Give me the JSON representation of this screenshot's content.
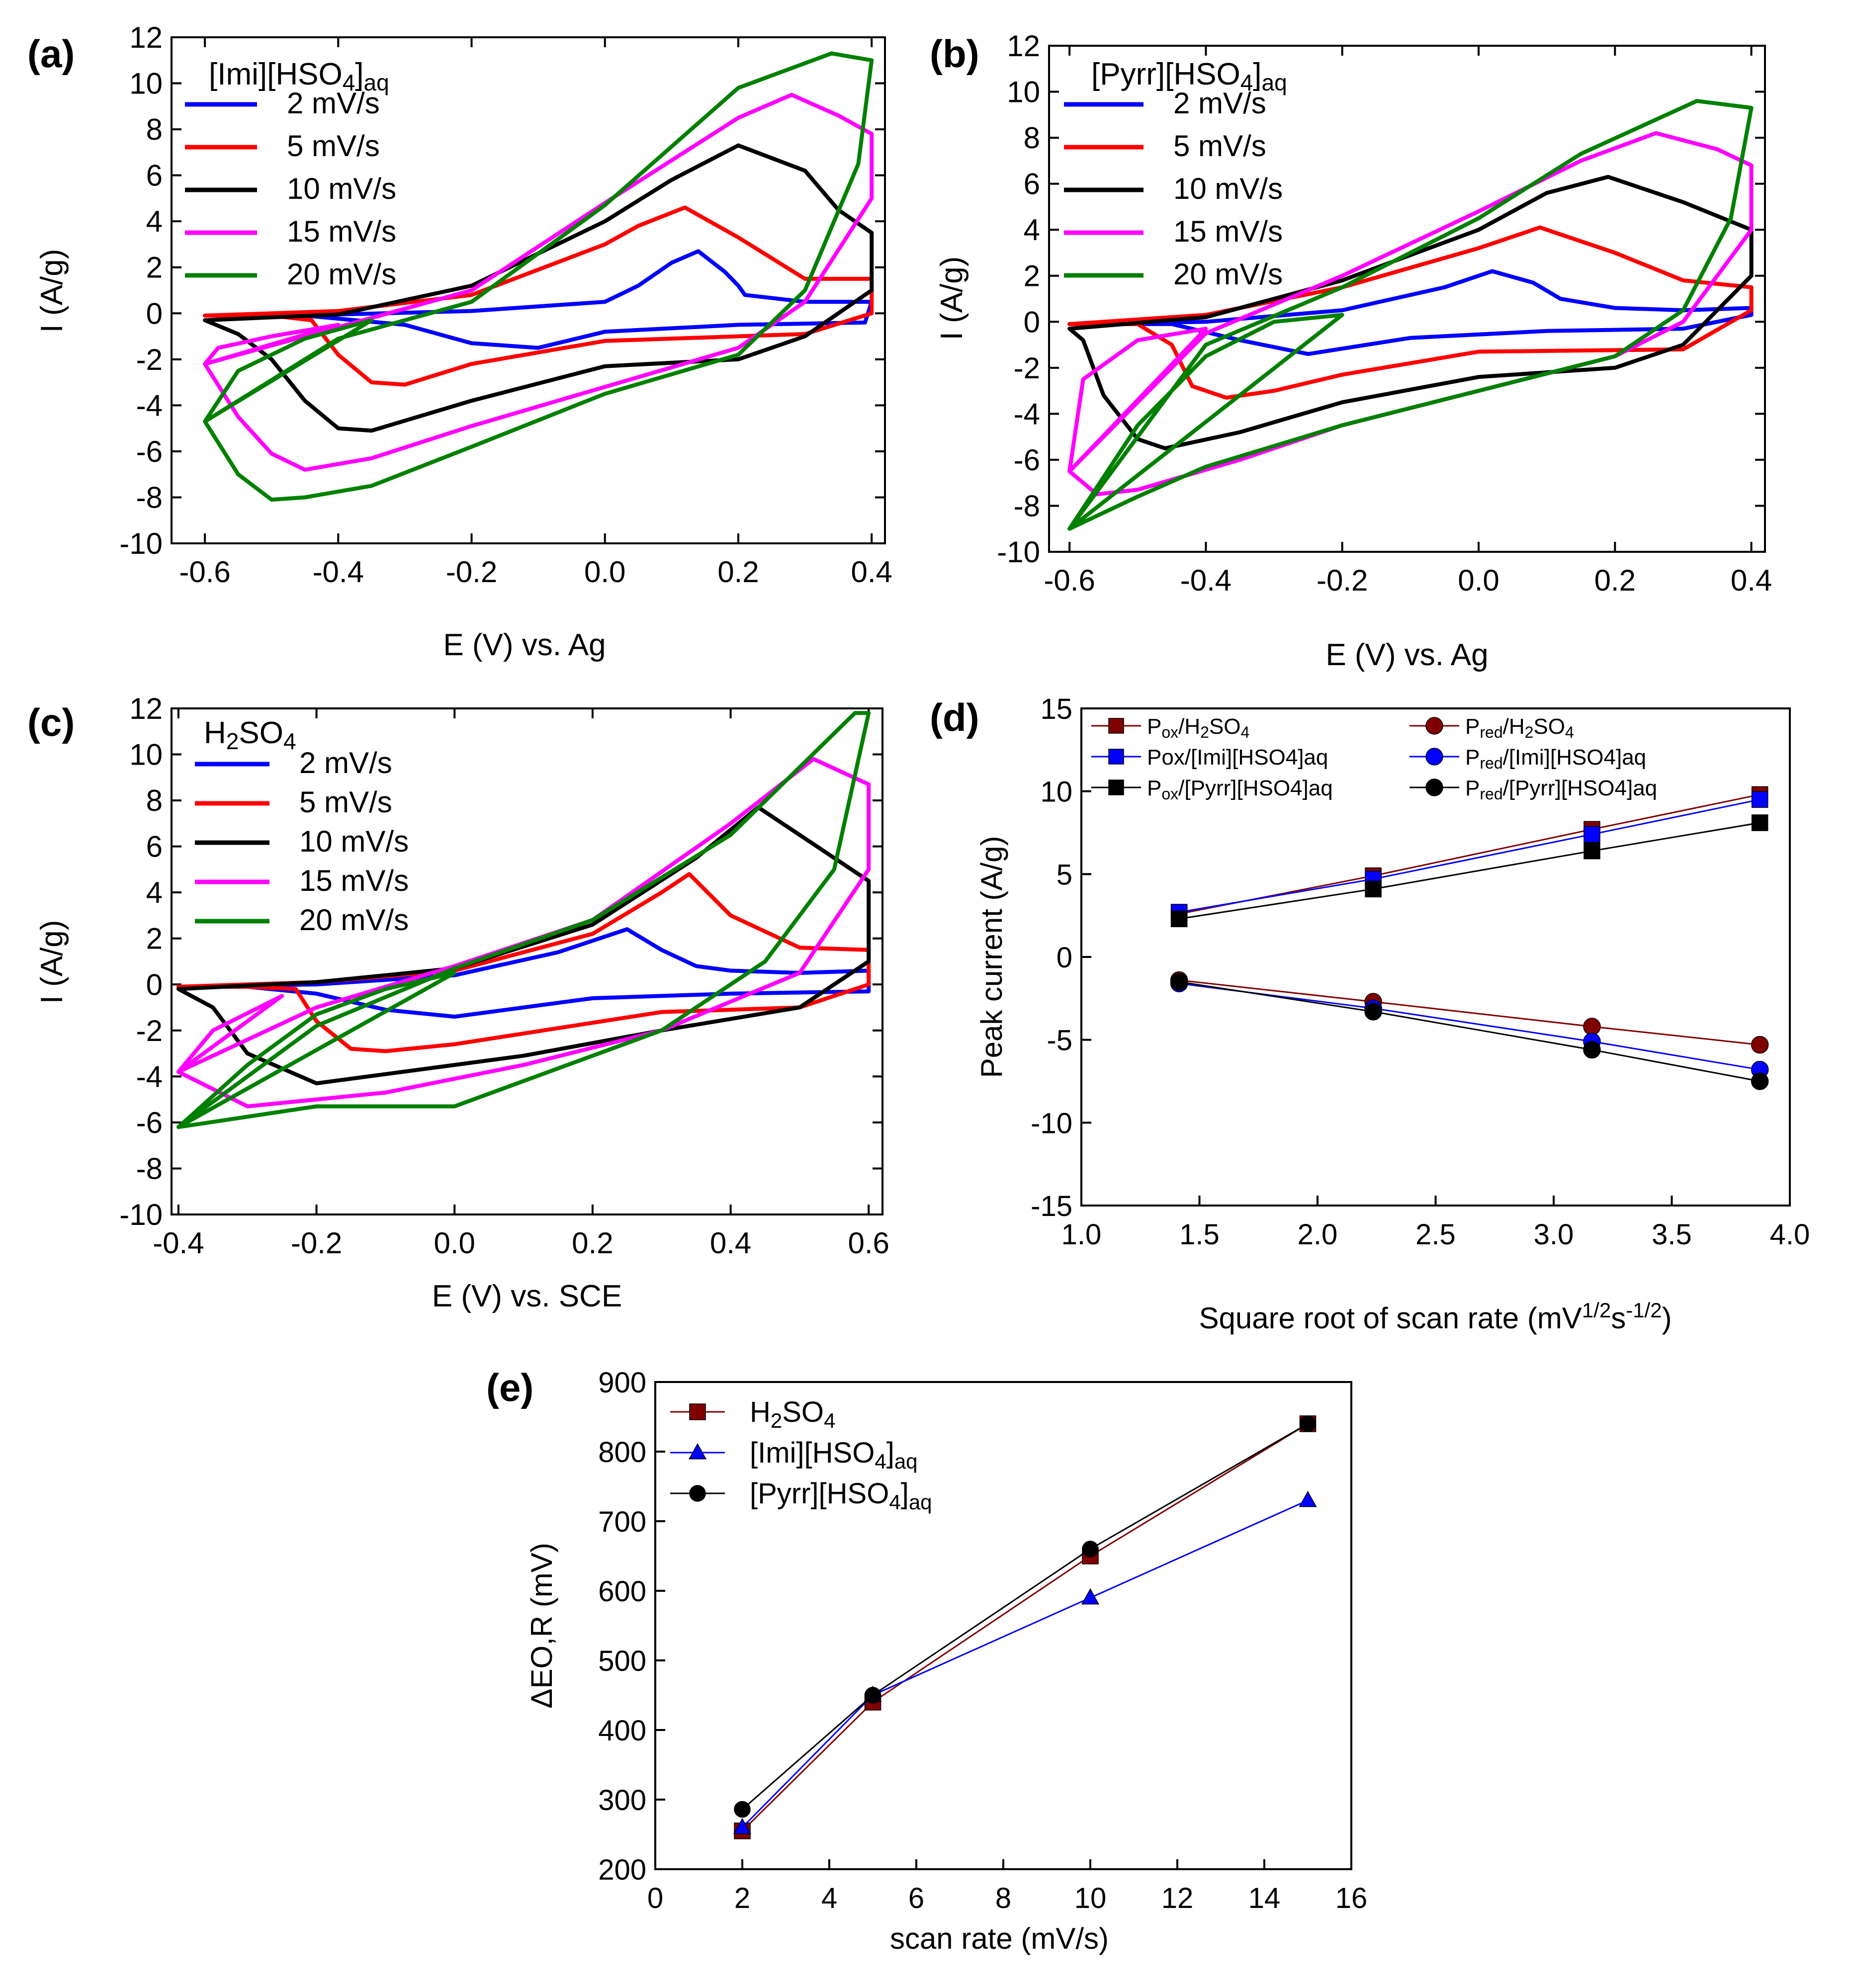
{
  "colors": {
    "blue": "#0000ff",
    "red": "#ff0000",
    "black": "#000000",
    "magenta": "#ff00ff",
    "green": "#008000",
    "maroon": "#800000"
  },
  "chart_data": [
    {
      "id": "a",
      "type": "line",
      "panel_label": "(a)",
      "legend_title": {
        "base": "[Imi][HSO",
        "sub1": "4",
        "mid": "]",
        "sub2": "aq"
      },
      "xlabel": "E (V) vs. Ag",
      "ylabel": "I (A/g)",
      "xlim": [
        -0.65,
        0.42
      ],
      "ylim": [
        -10,
        12
      ],
      "xticks": [
        -0.6,
        -0.4,
        -0.2,
        0.0,
        0.2,
        0.4
      ],
      "yticks": [
        -10,
        -8,
        -6,
        -4,
        -2,
        0,
        2,
        4,
        6,
        8,
        10,
        12
      ],
      "xtick_labels": [
        "-0.6",
        "-0.4",
        "-0.2",
        "0.0",
        "0.2",
        "0.4"
      ],
      "ytick_labels": [
        "-10",
        "-8",
        "-6",
        "-4",
        "-2",
        "0",
        "2",
        "4",
        "6",
        "8",
        "10",
        "12"
      ],
      "series": [
        {
          "name": "2 mV/s",
          "color": "#0000ff",
          "x": [
            -0.6,
            -0.4,
            -0.2,
            0.0,
            0.05,
            0.1,
            0.14,
            0.18,
            0.2,
            0.21,
            0.3,
            0.39,
            0.4,
            0.39,
            0.2,
            0.0,
            -0.1,
            -0.2,
            -0.3,
            -0.45,
            -0.6
          ],
          "y": [
            -0.1,
            -0.05,
            0.1,
            0.5,
            1.2,
            2.2,
            2.7,
            1.8,
            1.2,
            0.8,
            0.5,
            0.5,
            0.5,
            -0.4,
            -0.5,
            -0.8,
            -1.5,
            -1.3,
            -0.5,
            -0.1,
            -0.1
          ]
        },
        {
          "name": "5 mV/s",
          "color": "#ff0000",
          "x": [
            -0.6,
            -0.4,
            -0.2,
            0.0,
            0.05,
            0.12,
            0.2,
            0.3,
            0.4,
            0.4,
            0.3,
            0.0,
            -0.2,
            -0.3,
            -0.35,
            -0.4,
            -0.44,
            -0.5,
            -0.6
          ],
          "y": [
            -0.1,
            0.1,
            0.8,
            3.0,
            3.8,
            4.6,
            3.3,
            1.5,
            1.5,
            0.0,
            -0.9,
            -1.2,
            -2.2,
            -3.1,
            -3.0,
            -1.8,
            -0.3,
            -0.1,
            -0.1
          ]
        },
        {
          "name": "10 mV/s",
          "color": "#000000",
          "x": [
            -0.6,
            -0.4,
            -0.2,
            0.0,
            0.1,
            0.2,
            0.3,
            0.35,
            0.4,
            0.4,
            0.3,
            0.2,
            0.0,
            -0.2,
            -0.35,
            -0.4,
            -0.45,
            -0.5,
            -0.55,
            -0.6
          ],
          "y": [
            -0.3,
            -0.05,
            1.2,
            4.0,
            5.8,
            7.3,
            6.2,
            4.5,
            3.5,
            1.0,
            -1.0,
            -2.0,
            -2.3,
            -3.8,
            -5.1,
            -5.0,
            -3.8,
            -2.0,
            -0.9,
            -0.3
          ]
        },
        {
          "name": "15 mV/s",
          "color": "#ff00ff",
          "x": [
            -0.6,
            -0.4,
            -0.2,
            0.0,
            0.2,
            0.28,
            0.35,
            0.4,
            0.4,
            0.3,
            0.2,
            0.0,
            -0.2,
            -0.35,
            -0.45,
            -0.5,
            -0.55,
            -0.6,
            -0.58,
            -0.5,
            -0.4
          ],
          "y": [
            -2.2,
            -0.6,
            1.0,
            4.8,
            8.5,
            9.5,
            8.6,
            7.8,
            5.0,
            0.5,
            -1.5,
            -3.2,
            -4.9,
            -6.3,
            -6.8,
            -6.1,
            -4.5,
            -2.2,
            -1.5,
            -1.0,
            -0.5
          ]
        },
        {
          "name": "20 mV/s",
          "color": "#008000",
          "x": [
            -0.6,
            -0.4,
            -0.2,
            0.0,
            0.2,
            0.34,
            0.4,
            0.38,
            0.3,
            0.2,
            0.0,
            -0.2,
            -0.35,
            -0.45,
            -0.5,
            -0.55,
            -0.6,
            -0.55,
            -0.45,
            -0.35
          ],
          "y": [
            -4.7,
            -1.1,
            0.5,
            4.7,
            9.8,
            11.3,
            11.0,
            6.5,
            1.0,
            -1.8,
            -3.5,
            -5.8,
            -7.5,
            -8.0,
            -8.1,
            -7.0,
            -4.7,
            -2.5,
            -1.1,
            -0.3
          ]
        }
      ]
    },
    {
      "id": "b",
      "type": "line",
      "panel_label": "(b)",
      "legend_title": {
        "base": "[Pyrr][HSO",
        "sub1": "4",
        "mid": "]",
        "sub2": "aq"
      },
      "xlabel": "E (V) vs. Ag",
      "ylabel": "I (A/g)",
      "xlim": [
        -0.63,
        0.42
      ],
      "ylim": [
        -10,
        12
      ],
      "xticks": [
        -0.6,
        -0.4,
        -0.2,
        0.0,
        0.2,
        0.4
      ],
      "yticks": [
        -10,
        -8,
        -6,
        -4,
        -2,
        0,
        2,
        4,
        6,
        8,
        10,
        12
      ],
      "xtick_labels": [
        "-0.6",
        "-0.4",
        "-0.2",
        "0.0",
        "0.2",
        "0.4"
      ],
      "ytick_labels": [
        "-10",
        "-8",
        "-6",
        "-4",
        "-2",
        "0",
        "2",
        "4",
        "6",
        "8",
        "10",
        "12"
      ],
      "series": [
        {
          "name": "2 mV/s",
          "color": "#0000ff",
          "x": [
            -0.6,
            -0.4,
            -0.2,
            -0.05,
            0.02,
            0.08,
            0.12,
            0.2,
            0.3,
            0.4,
            0.4,
            0.3,
            0.1,
            -0.1,
            -0.25,
            -0.35,
            -0.45,
            -0.6
          ],
          "y": [
            -0.1,
            0.0,
            0.5,
            1.5,
            2.2,
            1.7,
            1.0,
            0.6,
            0.5,
            0.6,
            0.3,
            -0.3,
            -0.4,
            -0.7,
            -1.4,
            -0.8,
            -0.1,
            -0.1
          ]
        },
        {
          "name": "5 mV/s",
          "color": "#ff0000",
          "x": [
            -0.6,
            -0.4,
            -0.2,
            0.0,
            0.09,
            0.2,
            0.3,
            0.4,
            0.4,
            0.3,
            0.0,
            -0.2,
            -0.3,
            -0.37,
            -0.42,
            -0.45,
            -0.5,
            -0.6
          ],
          "y": [
            -0.1,
            0.3,
            1.5,
            3.2,
            4.1,
            3.0,
            1.8,
            1.5,
            0.5,
            -1.2,
            -1.3,
            -2.3,
            -3.0,
            -3.3,
            -2.8,
            -1.0,
            -0.1,
            -0.1
          ]
        },
        {
          "name": "10 mV/s",
          "color": "#000000",
          "x": [
            -0.6,
            -0.4,
            -0.2,
            0.0,
            0.1,
            0.19,
            0.3,
            0.4,
            0.4,
            0.3,
            0.2,
            0.0,
            -0.2,
            -0.35,
            -0.46,
            -0.5,
            -0.55,
            -0.58,
            -0.6
          ],
          "y": [
            -0.3,
            0.2,
            1.8,
            4.0,
            5.6,
            6.3,
            5.2,
            4.0,
            2.0,
            -1.0,
            -2.0,
            -2.4,
            -3.5,
            -4.8,
            -5.5,
            -5.1,
            -3.2,
            -0.8,
            -0.3
          ]
        },
        {
          "name": "15 mV/s",
          "color": "#ff00ff",
          "x": [
            -0.6,
            -0.4,
            -0.2,
            0.0,
            0.15,
            0.26,
            0.35,
            0.4,
            0.4,
            0.3,
            0.2,
            0.0,
            -0.2,
            -0.35,
            -0.5,
            -0.56,
            -0.6,
            -0.58,
            -0.5,
            -0.4
          ],
          "y": [
            -6.5,
            -0.5,
            2.0,
            4.8,
            7.0,
            8.2,
            7.5,
            6.8,
            4.0,
            0.0,
            -1.5,
            -3.0,
            -4.5,
            -6.0,
            -7.3,
            -7.5,
            -6.5,
            -2.5,
            -0.8,
            -0.3
          ]
        },
        {
          "name": "20 mV/s",
          "color": "#008000",
          "x": [
            -0.6,
            -0.4,
            -0.2,
            0.0,
            0.15,
            0.32,
            0.4,
            0.37,
            0.3,
            0.2,
            0.0,
            -0.2,
            -0.4,
            -0.5,
            -0.6,
            -0.5,
            -0.4,
            -0.3,
            -0.2
          ],
          "y": [
            -9.0,
            -1.0,
            1.5,
            4.5,
            7.3,
            9.6,
            9.3,
            4.5,
            0.5,
            -1.5,
            -3.0,
            -4.5,
            -6.3,
            -7.6,
            -9.0,
            -4.5,
            -1.5,
            0.0,
            0.3
          ]
        }
      ]
    },
    {
      "id": "c",
      "type": "line",
      "panel_label": "(c)",
      "legend_title": {
        "pre": "H",
        "s1": "2",
        "mid": "SO",
        "s2": "4"
      },
      "xlabel": "E (V) vs. SCE",
      "ylabel": "I (A/g)",
      "xlim": [
        -0.41,
        0.62
      ],
      "ylim": [
        -10,
        12
      ],
      "xticks": [
        -0.4,
        -0.2,
        0.0,
        0.2,
        0.4,
        0.6
      ],
      "yticks": [
        -10,
        -8,
        -6,
        -4,
        -2,
        0,
        2,
        4,
        6,
        8,
        10,
        12
      ],
      "xtick_labels": [
        "-0.4",
        "-0.2",
        "0.0",
        "0.2",
        "0.4",
        "0.6"
      ],
      "ytick_labels": [
        "-10",
        "-8",
        "-6",
        "-4",
        "-2",
        "0",
        "2",
        "4",
        "6",
        "8",
        "10",
        "12"
      ],
      "series": [
        {
          "name": "2 mV/s",
          "color": "#0000ff",
          "x": [
            -0.4,
            -0.2,
            0.0,
            0.15,
            0.25,
            0.3,
            0.35,
            0.4,
            0.5,
            0.6,
            0.6,
            0.4,
            0.2,
            0.0,
            -0.1,
            -0.2,
            -0.3,
            -0.4
          ],
          "y": [
            -0.1,
            0.0,
            0.4,
            1.4,
            2.4,
            1.5,
            0.8,
            0.6,
            0.5,
            0.6,
            -0.3,
            -0.4,
            -0.6,
            -1.4,
            -1.1,
            -0.4,
            -0.1,
            -0.1
          ]
        },
        {
          "name": "5 mV/s",
          "color": "#ff0000",
          "x": [
            -0.4,
            -0.2,
            0.0,
            0.2,
            0.3,
            0.34,
            0.4,
            0.5,
            0.6,
            0.6,
            0.5,
            0.3,
            0.0,
            -0.1,
            -0.15,
            -0.2,
            -0.23,
            -0.3,
            -0.4
          ],
          "y": [
            -0.1,
            0.1,
            0.6,
            2.2,
            4.0,
            4.8,
            3.0,
            1.6,
            1.5,
            0.0,
            -1.0,
            -1.2,
            -2.6,
            -2.9,
            -2.8,
            -1.6,
            -0.2,
            -0.1,
            -0.1
          ]
        },
        {
          "name": "10 mV/s",
          "color": "#000000",
          "x": [
            -0.4,
            -0.2,
            0.0,
            0.2,
            0.35,
            0.44,
            0.5,
            0.6,
            0.6,
            0.5,
            0.3,
            0.1,
            -0.1,
            -0.2,
            -0.3,
            -0.35,
            -0.4
          ],
          "y": [
            -0.2,
            0.1,
            0.7,
            2.6,
            5.5,
            7.7,
            6.5,
            4.5,
            1.0,
            -1.0,
            -2.0,
            -3.1,
            -3.9,
            -4.3,
            -3.0,
            -1.0,
            -0.2
          ]
        },
        {
          "name": "15 mV/s",
          "color": "#ff00ff",
          "x": [
            -0.4,
            -0.2,
            0.0,
            0.2,
            0.4,
            0.52,
            0.6,
            0.6,
            0.5,
            0.3,
            0.1,
            -0.1,
            -0.3,
            -0.4,
            -0.35,
            -0.25
          ],
          "y": [
            -3.8,
            -1.0,
            0.8,
            2.8,
            7.0,
            9.8,
            8.7,
            5.0,
            0.5,
            -2.0,
            -3.5,
            -4.7,
            -5.3,
            -3.8,
            -2.0,
            -0.5
          ]
        },
        {
          "name": "20 mV/s",
          "color": "#008000",
          "x": [
            -0.4,
            -0.2,
            0.0,
            0.2,
            0.4,
            0.58,
            0.6,
            0.55,
            0.45,
            0.3,
            0.0,
            -0.2,
            -0.4,
            -0.3,
            -0.2,
            -0.1,
            0.0
          ],
          "y": [
            -6.2,
            -1.8,
            0.7,
            2.8,
            6.5,
            11.8,
            11.8,
            5.0,
            1.0,
            -2.0,
            -5.3,
            -5.3,
            -6.2,
            -3.5,
            -1.3,
            -0.2,
            0.5
          ]
        }
      ]
    },
    {
      "id": "d",
      "type": "scatter",
      "panel_label": "(d)",
      "xlabel": {
        "pre": "Square root of scan rate (mV",
        "s1": "1/2",
        "mid": "s",
        "s2": "-1/2",
        "post": ")"
      },
      "ylabel": "Peak current (A/g)",
      "xlim": [
        1.0,
        4.0
      ],
      "ylim": [
        -15,
        15
      ],
      "xticks": [
        1.0,
        1.5,
        2.0,
        2.5,
        3.0,
        3.5,
        4.0
      ],
      "yticks": [
        -15,
        -10,
        -5,
        0,
        5,
        10,
        15
      ],
      "xtick_labels": [
        "1.0",
        "1.5",
        "2.0",
        "2.5",
        "3.0",
        "3.5",
        "4.0"
      ],
      "ytick_labels": [
        "-15",
        "-10",
        "-5",
        "0",
        "5",
        "10",
        "15"
      ],
      "x": [
        1.414,
        2.236,
        3.162,
        3.873
      ],
      "series": [
        {
          "name": {
            "p": "P",
            "sub": "ox",
            "rest": "/H",
            "s1": "2",
            "rest2": "SO",
            "s2": "4",
            "rest3": ""
          },
          "marker": "square",
          "color": "#800000",
          "values": [
            2.6,
            4.9,
            7.7,
            9.8
          ]
        },
        {
          "name": {
            "p": "Pox/[Imi][HSO4]aq"
          },
          "marker": "square",
          "color": "#0000ff",
          "values": [
            2.7,
            4.7,
            7.4,
            9.5
          ]
        },
        {
          "name": {
            "p": "P",
            "sub": "ox",
            "rest": "/[Pyrr][HSO4]aq"
          },
          "marker": "square",
          "color": "#000000",
          "values": [
            2.3,
            4.1,
            6.4,
            8.1
          ]
        },
        {
          "name": {
            "p": "P",
            "sub": "red",
            "rest": "/H",
            "s1": "2",
            "rest2": "SO",
            "s2": "4",
            "rest3": ""
          },
          "marker": "circle",
          "color": "#800000",
          "values": [
            -1.4,
            -2.7,
            -4.2,
            -5.3
          ]
        },
        {
          "name": {
            "p": "P",
            "sub": "red",
            "rest": "/[Imi][HSO4]aq"
          },
          "marker": "circle",
          "color": "#0000ff",
          "values": [
            -1.6,
            -3.1,
            -5.1,
            -6.8
          ]
        },
        {
          "name": {
            "p": "P",
            "sub": "red",
            "rest": "/[Pyrr][HSO4]aq"
          },
          "marker": "circle",
          "color": "#000000",
          "values": [
            -1.5,
            -3.3,
            -5.6,
            -7.5
          ]
        }
      ]
    },
    {
      "id": "e",
      "type": "line",
      "panel_label": "(e)",
      "xlabel": "scan rate (mV/s)",
      "ylabel": "ΔEO,R (mV)",
      "xlim": [
        0,
        16
      ],
      "ylim": [
        200,
        900
      ],
      "xticks": [
        0,
        2,
        4,
        6,
        8,
        10,
        12,
        14,
        16
      ],
      "yticks": [
        200,
        300,
        400,
        500,
        600,
        700,
        800,
        900
      ],
      "xtick_labels": [
        "0",
        "2",
        "4",
        "6",
        "8",
        "10",
        "12",
        "14",
        "16"
      ],
      "ytick_labels": [
        "200",
        "300",
        "400",
        "500",
        "600",
        "700",
        "800",
        "900"
      ],
      "x": [
        2,
        5,
        10,
        15
      ],
      "series": [
        {
          "name": {
            "pre": "H",
            "s1": "2",
            "mid": "SO",
            "s2": "4",
            "post": ""
          },
          "marker": "square",
          "color": "#800000",
          "values": [
            255,
            440,
            650,
            840
          ]
        },
        {
          "name": {
            "pre": "[Imi][HSO",
            "s1": "4",
            "mid": "]",
            "s2": "aq",
            "post": ""
          },
          "marker": "triangle",
          "color": "#0000ff",
          "values": [
            260,
            450,
            590,
            730
          ]
        },
        {
          "name": {
            "pre": "[Pyrr][HSO",
            "s1": "4",
            "mid": "]",
            "s2": "aq",
            "post": ""
          },
          "marker": "circle",
          "color": "#000000",
          "values": [
            286,
            450,
            660,
            840
          ]
        }
      ]
    }
  ]
}
